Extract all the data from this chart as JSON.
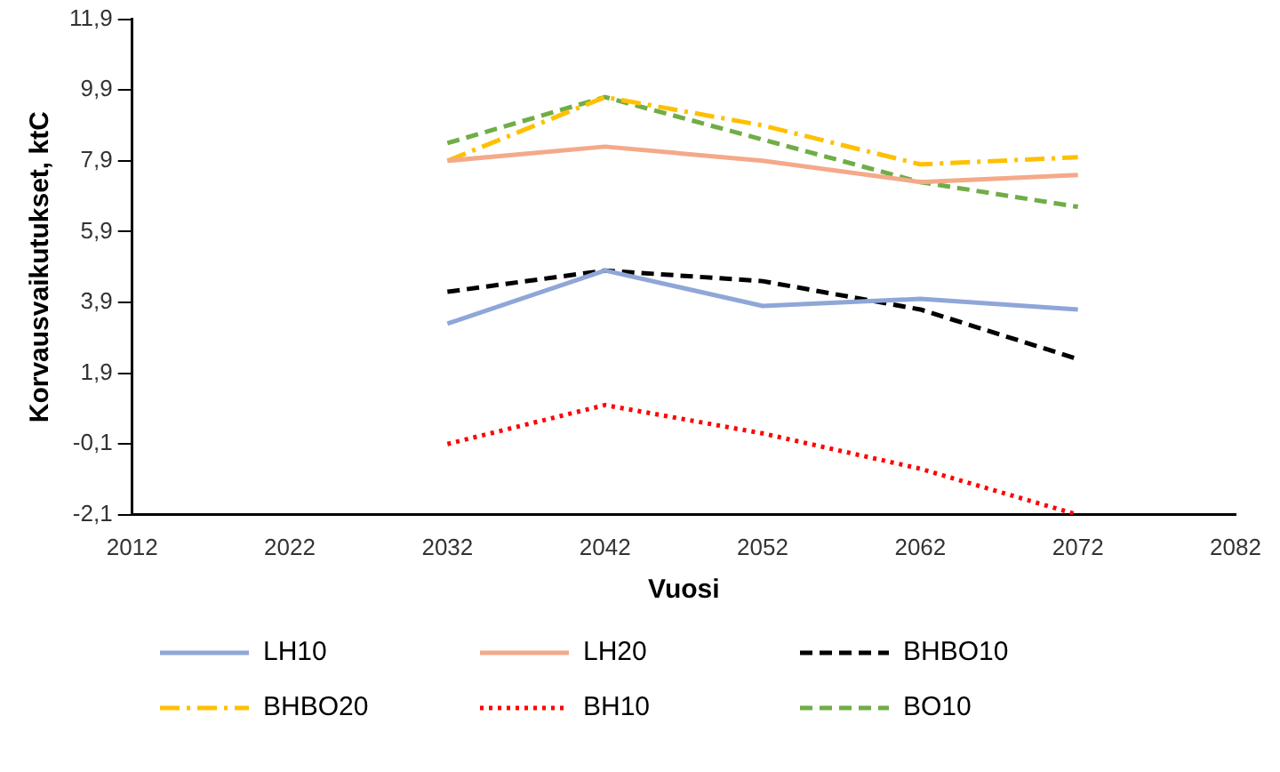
{
  "chart_data": {
    "type": "line",
    "xlabel": "Vuosi",
    "ylabel": "Korvausvaikutukset, ktC",
    "x": [
      2032,
      2042,
      2052,
      2062,
      2072
    ],
    "series": [
      {
        "name": "LH10",
        "color": "#8fa6d8",
        "line_style": "solid",
        "values": [
          3.3,
          4.8,
          3.8,
          4.0,
          3.7
        ]
      },
      {
        "name": "LH20",
        "color": "#f4a989",
        "line_style": "solid",
        "values": [
          7.9,
          8.3,
          7.9,
          7.3,
          7.5
        ]
      },
      {
        "name": "BHBO10",
        "color": "#000000",
        "line_style": "dashed",
        "values": [
          4.2,
          4.8,
          4.5,
          3.7,
          2.3
        ]
      },
      {
        "name": "BHBO20",
        "color": "#ffc000",
        "line_style": "dashdot",
        "values": [
          7.9,
          9.7,
          8.9,
          7.8,
          8.0
        ]
      },
      {
        "name": "BH10",
        "color": "#ff0000",
        "line_style": "dotted",
        "values": [
          -0.1,
          1.0,
          0.2,
          -0.8,
          -2.1
        ]
      },
      {
        "name": "BO10",
        "color": "#70ad47",
        "line_style": "dashed",
        "values": [
          8.4,
          9.7,
          8.5,
          7.3,
          6.6
        ]
      }
    ],
    "xlim": [
      2012,
      2082
    ],
    "xticks": [
      2012,
      2022,
      2032,
      2042,
      2052,
      2062,
      2072,
      2082
    ],
    "ylim": [
      -2.1,
      11.9
    ],
    "yticks": [
      {
        "value": -2.1,
        "label": "-2,1"
      },
      {
        "value": -0.1,
        "label": "-0,1"
      },
      {
        "value": 1.9,
        "label": "1,9"
      },
      {
        "value": 3.9,
        "label": "3,9"
      },
      {
        "value": 5.9,
        "label": "5,9"
      },
      {
        "value": 7.9,
        "label": "7,9"
      },
      {
        "value": 9.9,
        "label": "9,9"
      },
      {
        "value": 11.9,
        "label": "11,9"
      }
    ],
    "grid": false,
    "legend": "bottom",
    "marker": "none"
  }
}
